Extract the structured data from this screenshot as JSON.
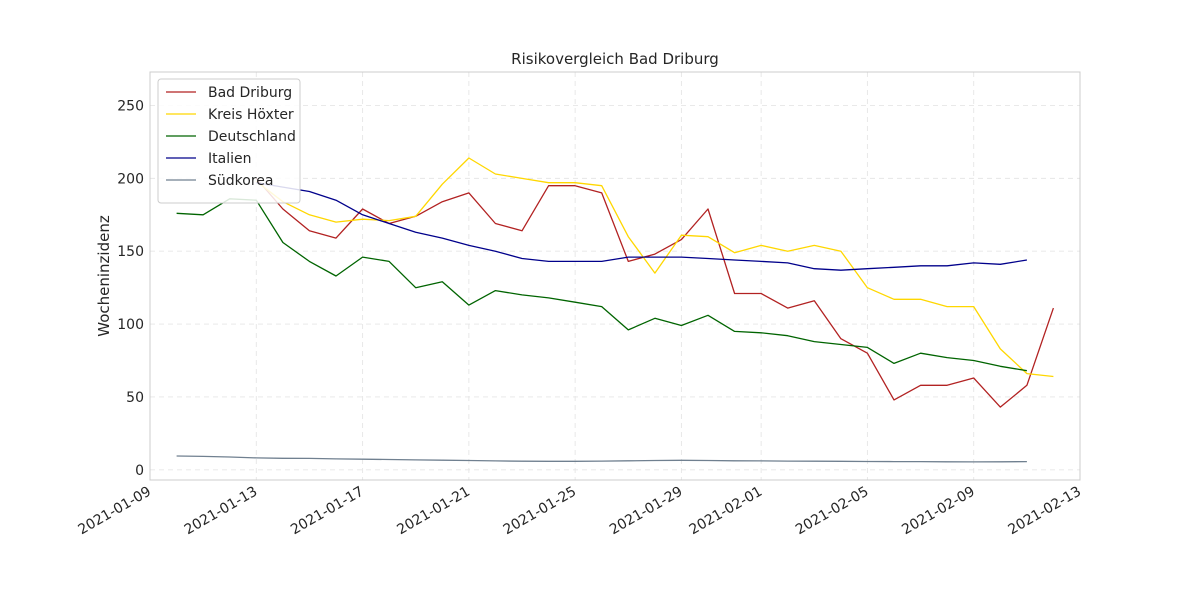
{
  "chart_data": {
    "type": "line",
    "title": "Risikovergleich Bad Driburg",
    "xlabel": "",
    "ylabel": "Wocheninzidenz",
    "xlim": [
      "2021-01-09",
      "2021-02-13"
    ],
    "ylim": [
      -7,
      273
    ],
    "grid": true,
    "legend_position": "top-left",
    "x_ticks": [
      "2021-01-09",
      "2021-01-13",
      "2021-01-17",
      "2021-01-21",
      "2021-01-25",
      "2021-01-29",
      "2021-02-01",
      "2021-02-05",
      "2021-02-09",
      "2021-02-13"
    ],
    "y_ticks": [
      0,
      50,
      100,
      150,
      200,
      250
    ],
    "series": [
      {
        "name": "Bad Driburg",
        "color": "#b22222",
        "points": [
          [
            "2021-01-13",
            200
          ],
          [
            "2021-01-14",
            179
          ],
          [
            "2021-01-15",
            164
          ],
          [
            "2021-01-16",
            159
          ],
          [
            "2021-01-17",
            179
          ],
          [
            "2021-01-18",
            169
          ],
          [
            "2021-01-19",
            174
          ],
          [
            "2021-01-20",
            184
          ],
          [
            "2021-01-21",
            190
          ],
          [
            "2021-01-22",
            169
          ],
          [
            "2021-01-23",
            164
          ],
          [
            "2021-01-24",
            195
          ],
          [
            "2021-01-25",
            195
          ],
          [
            "2021-01-26",
            190
          ],
          [
            "2021-01-27",
            143
          ],
          [
            "2021-01-28",
            148
          ],
          [
            "2021-01-29",
            158
          ],
          [
            "2021-01-30",
            179
          ],
          [
            "2021-01-31",
            121
          ],
          [
            "2021-02-01",
            121
          ],
          [
            "2021-02-02",
            111
          ],
          [
            "2021-02-03",
            116
          ],
          [
            "2021-02-04",
            90
          ],
          [
            "2021-02-05",
            80
          ],
          [
            "2021-02-06",
            48
          ],
          [
            "2021-02-07",
            58
          ],
          [
            "2021-02-08",
            58
          ],
          [
            "2021-02-09",
            63
          ],
          [
            "2021-02-10",
            43
          ],
          [
            "2021-02-11",
            58
          ],
          [
            "2021-02-12",
            111
          ]
        ]
      },
      {
        "name": "Kreis Höxter",
        "color": "#ffd700",
        "points": [
          [
            "2021-01-13",
            198
          ],
          [
            "2021-01-14",
            184
          ],
          [
            "2021-01-15",
            175
          ],
          [
            "2021-01-16",
            170
          ],
          [
            "2021-01-17",
            172
          ],
          [
            "2021-01-18",
            171
          ],
          [
            "2021-01-19",
            174
          ],
          [
            "2021-01-20",
            196
          ],
          [
            "2021-01-21",
            214
          ],
          [
            "2021-01-22",
            203
          ],
          [
            "2021-01-23",
            200
          ],
          [
            "2021-01-24",
            197
          ],
          [
            "2021-01-25",
            197
          ],
          [
            "2021-01-26",
            195
          ],
          [
            "2021-01-27",
            160
          ],
          [
            "2021-01-28",
            135
          ],
          [
            "2021-01-29",
            161
          ],
          [
            "2021-01-30",
            160
          ],
          [
            "2021-01-31",
            149
          ],
          [
            "2021-02-01",
            154
          ],
          [
            "2021-02-02",
            150
          ],
          [
            "2021-02-03",
            154
          ],
          [
            "2021-02-04",
            150
          ],
          [
            "2021-02-05",
            125
          ],
          [
            "2021-02-06",
            117
          ],
          [
            "2021-02-07",
            117
          ],
          [
            "2021-02-08",
            112
          ],
          [
            "2021-02-09",
            112
          ],
          [
            "2021-02-10",
            83
          ],
          [
            "2021-02-11",
            66
          ],
          [
            "2021-02-12",
            64
          ]
        ]
      },
      {
        "name": "Deutschland",
        "color": "#006400",
        "points": [
          [
            "2021-01-10",
            176
          ],
          [
            "2021-01-11",
            175
          ],
          [
            "2021-01-12",
            186
          ],
          [
            "2021-01-13",
            185
          ],
          [
            "2021-01-14",
            156
          ],
          [
            "2021-01-15",
            143
          ],
          [
            "2021-01-16",
            133
          ],
          [
            "2021-01-17",
            146
          ],
          [
            "2021-01-18",
            143
          ],
          [
            "2021-01-19",
            125
          ],
          [
            "2021-01-20",
            129
          ],
          [
            "2021-01-21",
            113
          ],
          [
            "2021-01-22",
            123
          ],
          [
            "2021-01-23",
            120
          ],
          [
            "2021-01-24",
            118
          ],
          [
            "2021-01-25",
            115
          ],
          [
            "2021-01-26",
            112
          ],
          [
            "2021-01-27",
            96
          ],
          [
            "2021-01-28",
            104
          ],
          [
            "2021-01-29",
            99
          ],
          [
            "2021-01-30",
            106
          ],
          [
            "2021-01-31",
            95
          ],
          [
            "2021-02-01",
            94
          ],
          [
            "2021-02-02",
            92
          ],
          [
            "2021-02-03",
            88
          ],
          [
            "2021-02-04",
            86
          ],
          [
            "2021-02-05",
            84
          ],
          [
            "2021-02-06",
            73
          ],
          [
            "2021-02-07",
            80
          ],
          [
            "2021-02-08",
            77
          ],
          [
            "2021-02-09",
            75
          ],
          [
            "2021-02-10",
            71
          ],
          [
            "2021-02-11",
            68
          ]
        ]
      },
      {
        "name": "Italien",
        "color": "#00008b",
        "points": [
          [
            "2021-01-13",
            197
          ],
          [
            "2021-01-14",
            194
          ],
          [
            "2021-01-15",
            191
          ],
          [
            "2021-01-16",
            185
          ],
          [
            "2021-01-17",
            175
          ],
          [
            "2021-01-18",
            169
          ],
          [
            "2021-01-19",
            163
          ],
          [
            "2021-01-20",
            159
          ],
          [
            "2021-01-21",
            154
          ],
          [
            "2021-01-22",
            150
          ],
          [
            "2021-01-23",
            145
          ],
          [
            "2021-01-24",
            143
          ],
          [
            "2021-01-25",
            143
          ],
          [
            "2021-01-26",
            143
          ],
          [
            "2021-01-27",
            146
          ],
          [
            "2021-01-28",
            146
          ],
          [
            "2021-01-29",
            146
          ],
          [
            "2021-01-30",
            145
          ],
          [
            "2021-01-31",
            144
          ],
          [
            "2021-02-01",
            143
          ],
          [
            "2021-02-02",
            142
          ],
          [
            "2021-02-03",
            138
          ],
          [
            "2021-02-04",
            137
          ],
          [
            "2021-02-05",
            138
          ],
          [
            "2021-02-06",
            139
          ],
          [
            "2021-02-07",
            140
          ],
          [
            "2021-02-08",
            140
          ],
          [
            "2021-02-09",
            142
          ],
          [
            "2021-02-10",
            141
          ],
          [
            "2021-02-11",
            144
          ]
        ]
      },
      {
        "name": "Südkorea",
        "color": "#708090",
        "points": [
          [
            "2021-01-10",
            9.5
          ],
          [
            "2021-01-11",
            9.2
          ],
          [
            "2021-01-12",
            8.8
          ],
          [
            "2021-01-13",
            8.2
          ],
          [
            "2021-01-14",
            7.9
          ],
          [
            "2021-01-15",
            7.8
          ],
          [
            "2021-01-16",
            7.5
          ],
          [
            "2021-01-17",
            7.3
          ],
          [
            "2021-01-18",
            7.1
          ],
          [
            "2021-01-19",
            6.8
          ],
          [
            "2021-01-20",
            6.6
          ],
          [
            "2021-01-21",
            6.4
          ],
          [
            "2021-01-22",
            6.1
          ],
          [
            "2021-01-23",
            5.9
          ],
          [
            "2021-01-24",
            5.8
          ],
          [
            "2021-01-25",
            5.8
          ],
          [
            "2021-01-26",
            6.0
          ],
          [
            "2021-01-27",
            6.2
          ],
          [
            "2021-01-28",
            6.4
          ],
          [
            "2021-01-29",
            6.5
          ],
          [
            "2021-01-30",
            6.4
          ],
          [
            "2021-01-31",
            6.2
          ],
          [
            "2021-02-01",
            6.1
          ],
          [
            "2021-02-02",
            6.0
          ],
          [
            "2021-02-03",
            5.9
          ],
          [
            "2021-02-04",
            5.8
          ],
          [
            "2021-02-05",
            5.7
          ],
          [
            "2021-02-06",
            5.6
          ],
          [
            "2021-02-07",
            5.6
          ],
          [
            "2021-02-08",
            5.5
          ],
          [
            "2021-02-09",
            5.4
          ],
          [
            "2021-02-10",
            5.5
          ],
          [
            "2021-02-11",
            5.6
          ]
        ]
      }
    ]
  }
}
